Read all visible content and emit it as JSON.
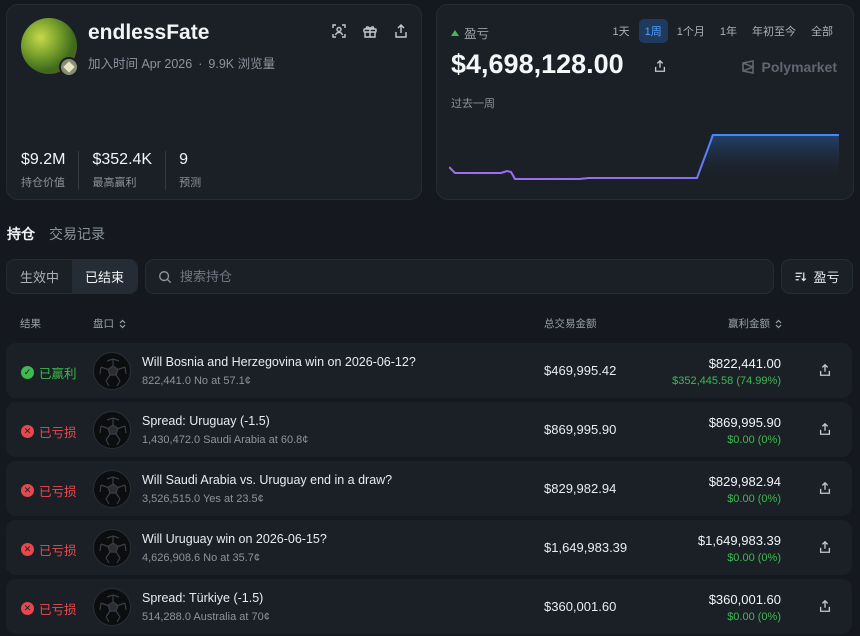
{
  "profile": {
    "username": "endlessFate",
    "joined": "加入时间 Apr 2026",
    "views": "9.9K 浏览量",
    "icons": [
      "scan-icon",
      "gift-icon",
      "share-icon"
    ],
    "stats": [
      {
        "value": "$9.2M",
        "label": "持仓价值"
      },
      {
        "value": "$352.4K",
        "label": "最高赢利"
      },
      {
        "value": "9",
        "label": "预测"
      }
    ]
  },
  "pnl": {
    "label": "盈亏",
    "ranges": [
      "1天",
      "1周",
      "1个月",
      "1年",
      "年初至今",
      "全部"
    ],
    "active_range": "1周",
    "value": "$4,698,128.00",
    "brand": "Polymarket",
    "period": "过去一周",
    "colors": {
      "line_low": "#9b6cf2",
      "line_high": "#3d8bfd",
      "up": "#3fb950"
    }
  },
  "tabs": [
    "持仓",
    "交易记录"
  ],
  "active_tab": "持仓",
  "filters": {
    "segments": [
      "生效中",
      "已结束"
    ],
    "active_segment": "已结束",
    "search_placeholder": "搜索持仓",
    "sort_label": "盈亏"
  },
  "table": {
    "headers": {
      "result": "结果",
      "market": "盘口",
      "volume": "总交易金额",
      "winnings": "赢利金额"
    },
    "rows": [
      {
        "status": "已赢利",
        "status_type": "won",
        "question": "Will Bosnia and Herzegovina win on 2026-06-12?",
        "detail": "822,441.0 No at 57.1¢",
        "volume": "$469,995.42",
        "winnings": "$822,441.00",
        "gain": "$352,445.58 (74.99%)"
      },
      {
        "status": "已亏损",
        "status_type": "lost",
        "question": "Spread: Uruguay (-1.5)",
        "detail": "1,430,472.0 Saudi Arabia at 60.8¢",
        "volume": "$869,995.90",
        "winnings": "$869,995.90",
        "gain": "$0.00 (0%)"
      },
      {
        "status": "已亏损",
        "status_type": "lost",
        "question": "Will Saudi Arabia vs. Uruguay end in a draw?",
        "detail": "3,526,515.0 Yes at 23.5¢",
        "volume": "$829,982.94",
        "winnings": "$829,982.94",
        "gain": "$0.00 (0%)"
      },
      {
        "status": "已亏损",
        "status_type": "lost",
        "question": "Will Uruguay win on 2026-06-15?",
        "detail": "4,626,908.6 No at 35.7¢",
        "volume": "$1,649,983.39",
        "winnings": "$1,649,983.39",
        "gain": "$0.00 (0%)"
      },
      {
        "status": "已亏损",
        "status_type": "lost",
        "question": "Spread: Türkiye (-1.5)",
        "detail": "514,288.0 Australia at 70¢",
        "volume": "$360,001.60",
        "winnings": "$360,001.60",
        "gain": "$0.00 (0%)"
      }
    ]
  }
}
